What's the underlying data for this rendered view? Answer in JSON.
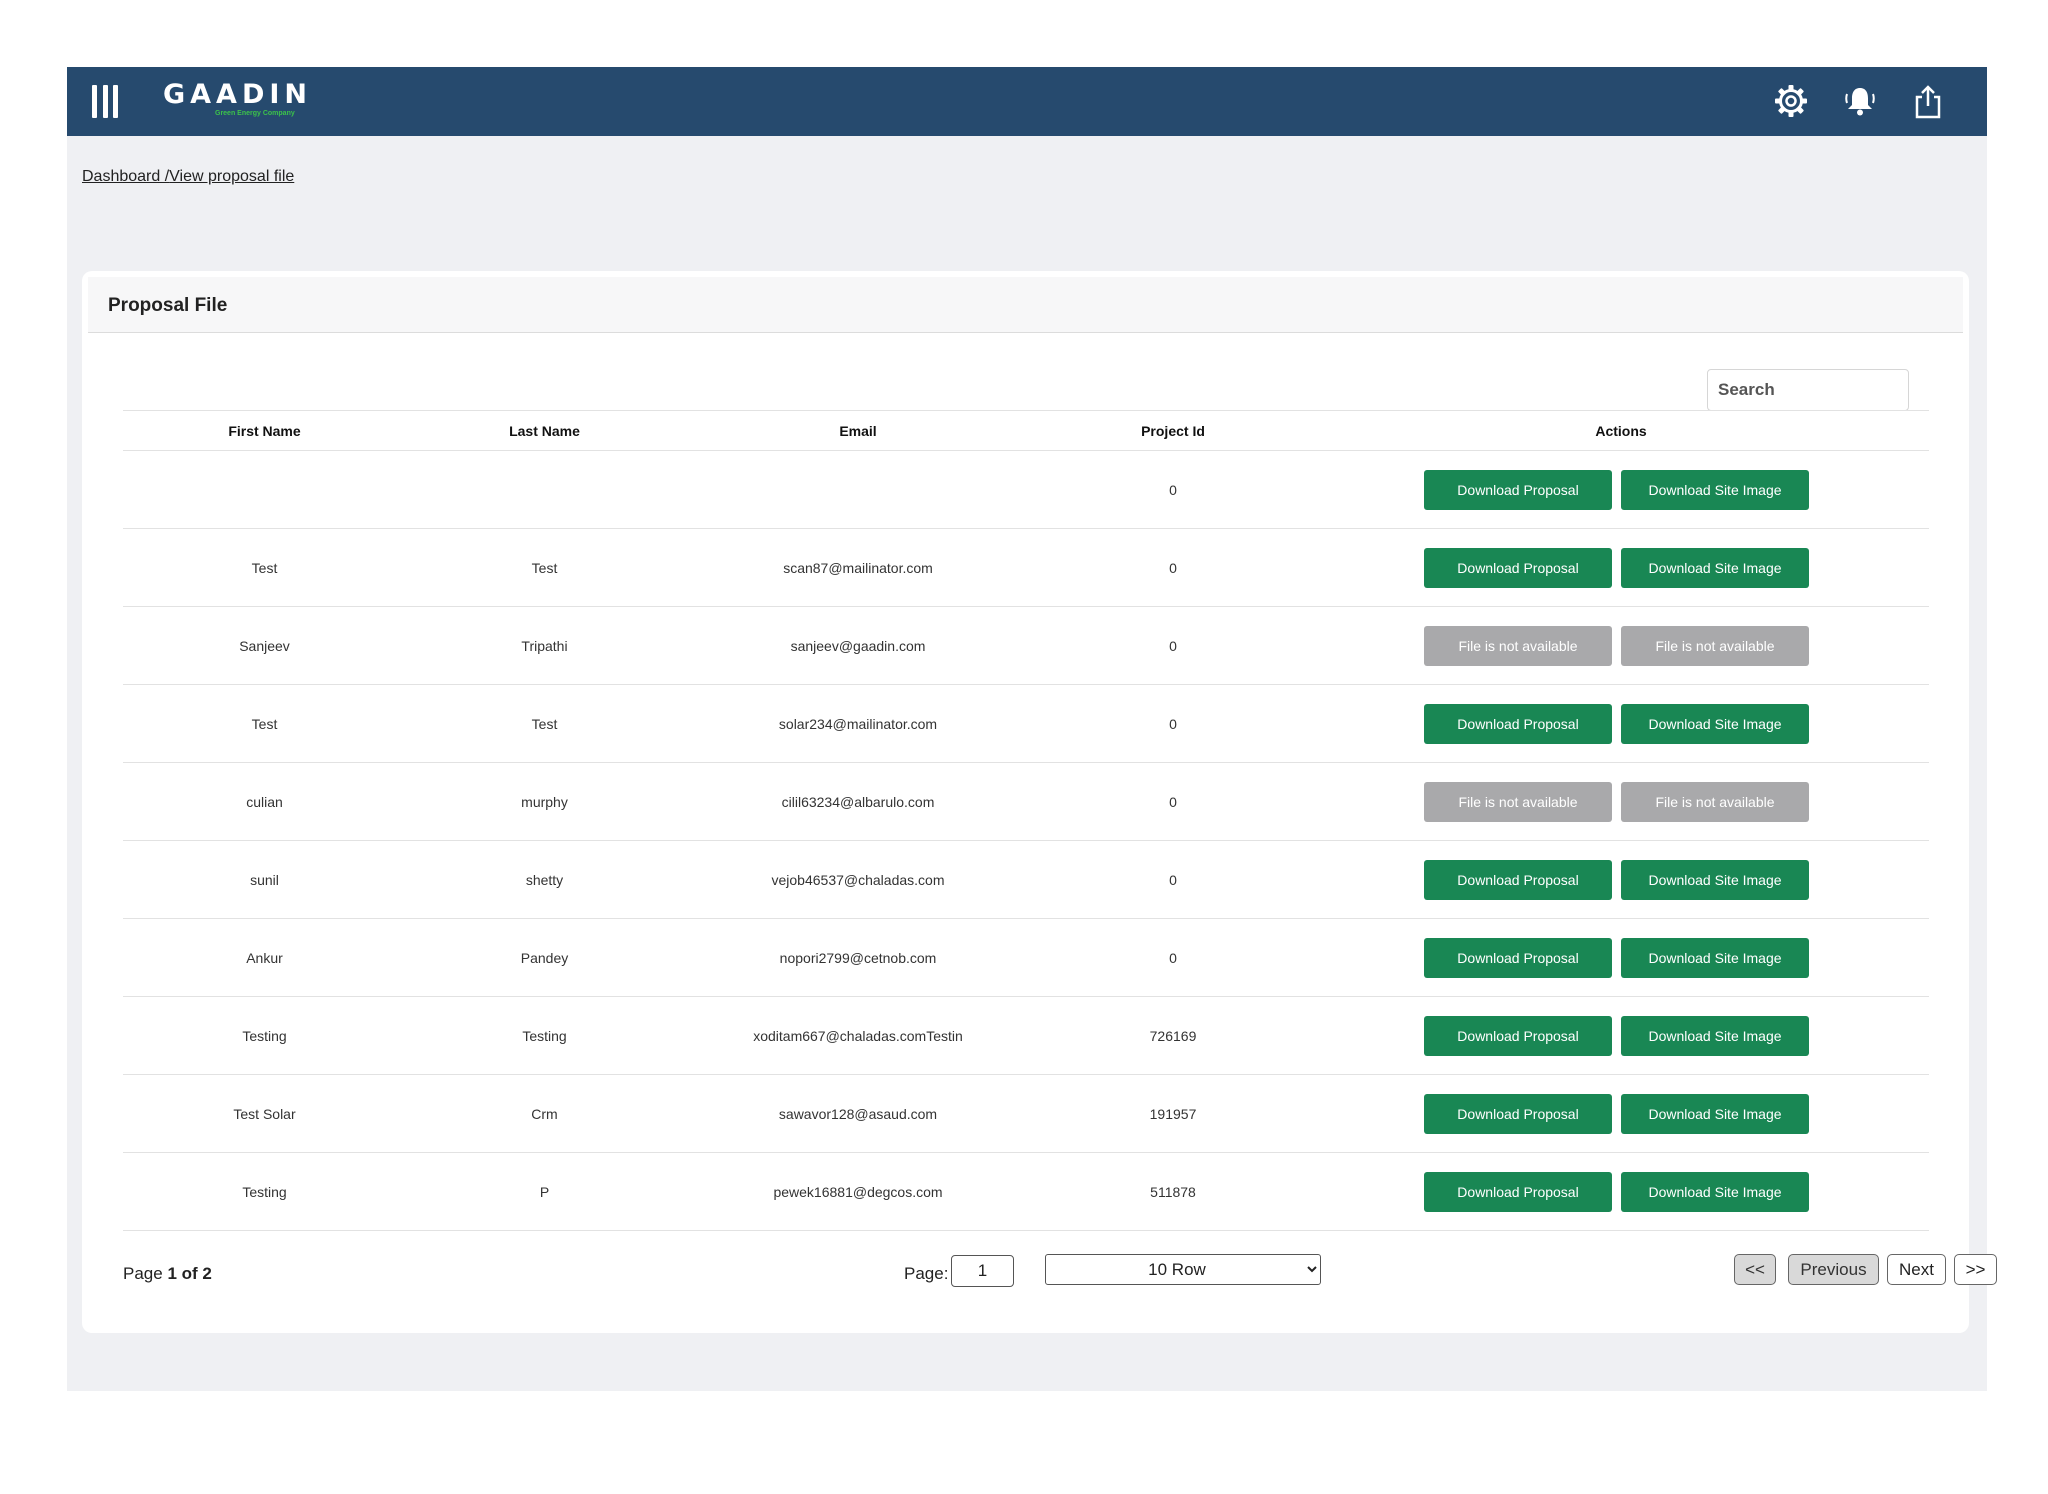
{
  "header": {
    "logo_text": "GAADIN",
    "logo_tagline": "Green Energy Company"
  },
  "breadcrumb": {
    "items": [
      "Dashboard /",
      "View proposal file"
    ]
  },
  "card": {
    "title": "Proposal File",
    "search_placeholder": "Search"
  },
  "table": {
    "columns": [
      "First Name",
      "Last Name",
      "Email",
      "Project Id",
      "Actions"
    ],
    "rows": [
      {
        "first_name": "",
        "last_name": "",
        "email": "",
        "project_id": "0",
        "proposal_label": "Download Proposal",
        "image_label": "Download Site Image",
        "available": true
      },
      {
        "first_name": "Test",
        "last_name": "Test",
        "email": "scan87@mailinator.com",
        "project_id": "0",
        "proposal_label": "Download Proposal",
        "image_label": "Download Site Image",
        "available": true
      },
      {
        "first_name": "Sanjeev",
        "last_name": "Tripathi",
        "email": "sanjeev@gaadin.com",
        "project_id": "0",
        "proposal_label": "File is not available",
        "image_label": "File is not available",
        "available": false
      },
      {
        "first_name": "Test",
        "last_name": "Test",
        "email": "solar234@mailinator.com",
        "project_id": "0",
        "proposal_label": "Download Proposal",
        "image_label": "Download Site Image",
        "available": true
      },
      {
        "first_name": "culian",
        "last_name": "murphy",
        "email": "cilil63234@albarulo.com",
        "project_id": "0",
        "proposal_label": "File is not available",
        "image_label": "File is not available",
        "available": false
      },
      {
        "first_name": "sunil",
        "last_name": "shetty",
        "email": "vejob46537@chaladas.com",
        "project_id": "0",
        "proposal_label": "Download Proposal",
        "image_label": "Download Site Image",
        "available": true
      },
      {
        "first_name": "Ankur",
        "last_name": "Pandey",
        "email": "nopori2799@cetnob.com",
        "project_id": "0",
        "proposal_label": "Download Proposal",
        "image_label": "Download Site Image",
        "available": true
      },
      {
        "first_name": "Testing",
        "last_name": "Testing",
        "email": "xoditam667@chaladas.comTestin",
        "project_id": "726169",
        "proposal_label": "Download Proposal",
        "image_label": "Download Site Image",
        "available": true
      },
      {
        "first_name": "Test Solar",
        "last_name": "Crm",
        "email": "sawavor128@asaud.com",
        "project_id": "191957",
        "proposal_label": "Download Proposal",
        "image_label": "Download Site Image",
        "available": true
      },
      {
        "first_name": "Testing",
        "last_name": "P",
        "email": "pewek16881@degcos.com",
        "project_id": "511878",
        "proposal_label": "Download Proposal",
        "image_label": "Download Site Image",
        "available": true
      }
    ]
  },
  "pagination": {
    "page_prefix": "Page ",
    "page_of": "1 of 2",
    "page_label": "Page:",
    "page_value": "1",
    "rows_selected": "10 Row",
    "first_label": "<<",
    "previous_label": "Previous",
    "next_label": "Next",
    "last_label": ">>"
  },
  "colors": {
    "topbar": "#264a6e",
    "primary_green": "#198754",
    "disabled_gray": "#a9a9ab",
    "page_background": "#eff0f3"
  },
  "icons": [
    "menu-icon",
    "gear-icon",
    "bell-icon",
    "share-icon"
  ]
}
